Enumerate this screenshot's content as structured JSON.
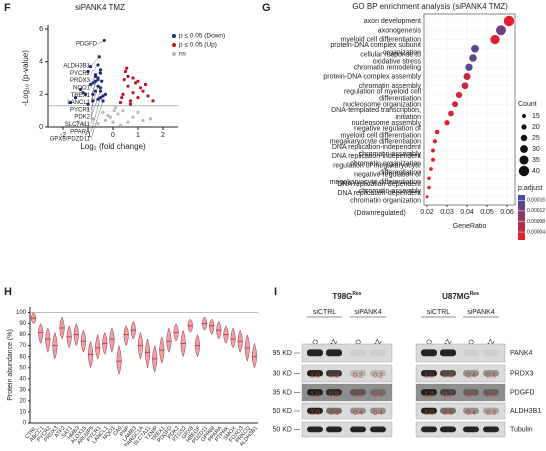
{
  "chart_data": [
    {
      "type": "scatter",
      "label": "F",
      "title": "siPANK4 TMZ",
      "x_label": "Log₂ (fold change)",
      "y_label": "-Log₁₀ (p-value)",
      "xlim": [
        -2.6,
        2.6
      ],
      "xticks": [
        -2,
        -1,
        0,
        1,
        2
      ],
      "ylim": [
        0,
        6
      ],
      "yticks": [
        0,
        2,
        4,
        6
      ],
      "threshold": 1.3,
      "series": [
        {
          "name": "p ≤ 0.05 (Down)",
          "color": "#1f2a7a",
          "x": [
            -1.2,
            -0.9,
            -0.7,
            -1.5,
            -0.5,
            -1.0,
            -0.8,
            -0.6,
            -1.3,
            -0.4,
            -0.9,
            -1.1,
            -0.7,
            -0.5,
            -1.7,
            -0.6,
            -0.8,
            -1.0,
            -0.3,
            -0.45
          ],
          "values": [
            2.1,
            2.6,
            3.1,
            1.8,
            2.4,
            3.4,
            1.6,
            2.9,
            2.3,
            1.9,
            3.7,
            2.0,
            2.2,
            3.3,
            1.5,
            1.7,
            2.7,
            1.4,
            2.0,
            2.8
          ]
        },
        {
          "name": "p ≤ 0.05 (Up)",
          "color": "#c1121f",
          "x": [
            0.4,
            0.6,
            0.8,
            1.0,
            1.2,
            0.5,
            0.7,
            0.9,
            1.4,
            0.3,
            1.1,
            0.6,
            0.8,
            1.6,
            0.45,
            1.0,
            0.35,
            0.7,
            1.3,
            0.55
          ],
          "values": [
            2.0,
            2.5,
            3.0,
            1.8,
            2.2,
            3.4,
            1.6,
            2.7,
            1.9,
            1.5,
            2.4,
            3.1,
            2.1,
            1.6,
            2.9,
            2.8,
            1.8,
            1.4,
            2.6,
            3.6
          ]
        },
        {
          "name": "ns",
          "color": "#b8b8b8",
          "x": [
            -1.2,
            -0.8,
            -0.4,
            0,
            0.4,
            0.8,
            1.2,
            -1.0,
            -0.6,
            -0.2,
            0.2,
            0.6,
            1.0,
            -0.3,
            0.1,
            0.3,
            -0.1,
            -1.4,
            1.5,
            0.05
          ],
          "values": [
            0.2,
            0.5,
            0.9,
            0.3,
            1.0,
            0.6,
            0.4,
            1.1,
            0.2,
            0.7,
            0.8,
            0.3,
            0.9,
            0.4,
            1.2,
            0.1,
            0.6,
            0.3,
            0.5,
            1.0
          ]
        }
      ],
      "annotations": [
        {
          "text": "PDGFD",
          "x": -0.35,
          "y": 5.3
        },
        {
          "text": "ALDH3B1",
          "x": -0.55,
          "y": 4.3
        },
        {
          "text": "PYCR2",
          "x": -0.6,
          "y": 3.8
        },
        {
          "text": "PRDX3",
          "x": -0.5,
          "y": 3.5
        },
        {
          "text": "NQO1",
          "x": -0.7,
          "y": 3.2
        },
        {
          "text": "TREX1",
          "x": -0.6,
          "y": 3.0
        },
        {
          "text": "LANCL1",
          "x": -0.7,
          "y": 2.8
        },
        {
          "text": "PYCR1",
          "x": -0.6,
          "y": 2.5
        },
        {
          "text": "PDK2",
          "x": -0.5,
          "y": 2.2
        },
        {
          "text": "SLC7A11",
          "x": -0.8,
          "y": 2.0
        },
        {
          "text": "PPARA",
          "x": -0.5,
          "y": 1.8
        },
        {
          "text": "GPX8/PDZD11",
          "x": -0.4,
          "y": 1.6
        }
      ]
    },
    {
      "type": "dot",
      "label": "G",
      "title": "GO BP enrichment analysis (siPANK4 TMZ)",
      "x_label": "GeneRatio",
      "note": "(Downregulated)",
      "xlim": [
        0.0185,
        0.064
      ],
      "xticks": [
        0.02,
        0.03,
        0.04,
        0.05,
        0.06
      ],
      "categories": [
        "axon development",
        "axonogenesis",
        "myeloid cell differentiation",
        "protein-DNA complex subunit\norganization",
        "cellular response to\noxidative stress",
        "chromatin remodeling",
        "protein-DNA complex assembly",
        "chromatin assembly",
        "regulation of myeloid cell\ndifferentiation",
        "nucleosome organization",
        "DNA-templated transcription,\ninitiation",
        "nucleosome assembly",
        "negative regulation of\nmyeloid cell differentiation",
        "megakaryocyte differentiation",
        "DNA replication-independent\nchromatin assembly",
        "DNA replication-independent\nchromatin organization",
        "regulation of megakaryocyte\ndifferentiation",
        "negative regulation of\nmegakaryocyte differentiation",
        "DNA replication-dependent\nchromatin assembly",
        "DNA replication-dependent\nchromatin organization"
      ],
      "values": [
        0.061,
        0.057,
        0.054,
        0.044,
        0.043,
        0.041,
        0.04,
        0.039,
        0.036,
        0.034,
        0.032,
        0.03,
        0.025,
        0.024,
        0.023,
        0.023,
        0.022,
        0.021,
        0.021,
        0.02
      ],
      "counts": [
        40,
        38,
        36,
        30,
        29,
        28,
        27,
        26,
        24,
        23,
        22,
        20,
        17,
        16,
        15,
        15,
        14,
        13,
        13,
        12
      ],
      "padj": [
        2e-05,
        0.00013,
        3e-05,
        0.00015,
        0.00014,
        0.00016,
        5e-05,
        4e-05,
        3e-05,
        4e-05,
        3e-05,
        2e-05,
        2e-05,
        1e-05,
        1e-05,
        1e-05,
        1e-05,
        1e-05,
        1e-05,
        1e-05
      ],
      "size_legend": {
        "title": "Count",
        "values": [
          15,
          20,
          25,
          30,
          35,
          40
        ]
      },
      "colorbar": {
        "title": "p.adjust",
        "lim": [
          1e-05,
          0.00018
        ],
        "ticks": [
          0.00016,
          0.00012,
          8e-05,
          4e-05
        ],
        "colors": [
          "#ee1c25",
          "#3a4fa5"
        ]
      }
    },
    {
      "type": "violin",
      "label": "H",
      "y_label": "Protein abundance (%)",
      "ylim": [
        0,
        105
      ],
      "yticks": [
        0,
        10,
        20,
        30,
        40,
        50,
        60,
        70,
        80,
        90,
        100
      ],
      "reference": 100,
      "color": "#e8a3ab",
      "stroke": "#a8323f",
      "categories": [
        "CTRL",
        "ABCC1",
        "PYCR2",
        "PRDX3",
        "ATF2",
        "SAT1",
        "HMB3",
        "ALOX15",
        "ARL6IP5",
        "PYCR1",
        "LANCL1",
        "NQO1",
        "CA9",
        "PNP",
        "LAMB3",
        "PPARGC1A",
        "SLC7A11",
        "TXNIP",
        "TREX1",
        "PDGFD",
        "PDK2",
        "PTGS2",
        "GPX8",
        "HBEGF",
        "PDZD11",
        "GPR68",
        "PPARA",
        "PTPRK",
        "SMOX",
        "FOXO3",
        "PRKCQ",
        "ALDH3B1"
      ],
      "values": [
        95,
        82,
        76,
        70,
        86,
        78,
        80,
        74,
        62,
        68,
        72,
        76,
        56,
        80,
        84,
        70,
        64,
        58,
        66,
        74,
        82,
        72,
        88,
        70,
        90,
        88,
        84,
        80,
        76,
        74,
        68,
        60
      ],
      "low": [
        90,
        72,
        64,
        58,
        76,
        68,
        70,
        64,
        50,
        58,
        62,
        64,
        44,
        70,
        76,
        58,
        50,
        46,
        54,
        64,
        74,
        60,
        82,
        60,
        84,
        80,
        76,
        72,
        68,
        64,
        56,
        50
      ],
      "high": [
        100,
        90,
        86,
        82,
        96,
        88,
        90,
        84,
        74,
        80,
        82,
        86,
        70,
        88,
        92,
        82,
        76,
        70,
        78,
        86,
        90,
        84,
        94,
        80,
        96,
        94,
        92,
        88,
        86,
        84,
        80,
        72
      ]
    }
  ],
  "blot": {
    "label": "I",
    "cell_lines": [
      {
        "name": "T98G",
        "superscript": "Res"
      },
      {
        "name": "U87MG",
        "superscript": "Res"
      }
    ],
    "groups": [
      "siCTRL",
      "siPANK4"
    ],
    "treatments": [
      "DMSO",
      "TMZ"
    ],
    "rows": [
      {
        "protein": "PANK4",
        "size": "95 KD"
      },
      {
        "protein": "PRDX3",
        "size": "30 KD",
        "quant": [
          [
            "1.0",
            "0.9",
            "0.2",
            "0.2"
          ],
          [
            "1.0",
            "0.8",
            "0.4",
            "0.4"
          ]
        ]
      },
      {
        "protein": "PDGFD",
        "size": "35 KD",
        "quant": [
          [
            "1.0",
            "0.9",
            "0.5",
            "0.3"
          ],
          [
            "1.0",
            "0.7",
            "0.4",
            "0.4"
          ]
        ]
      },
      {
        "protein": "ALDH3B1",
        "size": "50 KD",
        "quant": [
          [
            "1.0",
            "0.6",
            "0.4",
            "0.4"
          ],
          [
            "1.0",
            "0.6",
            "0.4",
            "0.3"
          ]
        ]
      },
      {
        "protein": "Tubulin",
        "size": "50 KD"
      }
    ]
  }
}
